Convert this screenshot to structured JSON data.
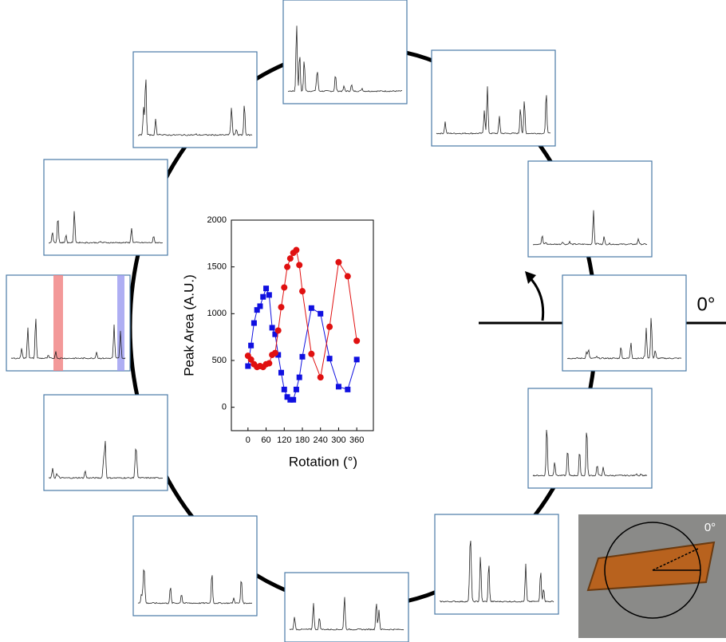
{
  "chart_data": {
    "type": "line",
    "xlabel": "Rotation (°)",
    "ylabel": "Peak Area (A.U.)",
    "annotations": [
      "0°",
      "0°"
    ],
    "x": [
      0,
      10,
      20,
      30,
      40,
      50,
      60,
      70,
      80,
      90,
      100,
      110,
      120,
      130,
      140,
      150,
      160,
      170,
      180,
      210,
      240,
      270,
      300,
      330,
      360
    ],
    "series": [
      {
        "name": "blue",
        "color": "#1010e0",
        "marker": "square",
        "values": [
          440,
          660,
          900,
          1040,
          1080,
          1180,
          1270,
          1200,
          850,
          780,
          560,
          370,
          190,
          110,
          80,
          80,
          190,
          320,
          540,
          1060,
          1000,
          520,
          220,
          190,
          510
        ]
      },
      {
        "name": "red",
        "color": "#e01010",
        "marker": "circle",
        "values": [
          550,
          510,
          460,
          430,
          440,
          430,
          460,
          470,
          560,
          580,
          820,
          1070,
          1280,
          1500,
          1590,
          1650,
          1680,
          1520,
          1240,
          570,
          320,
          860,
          1550,
          1400,
          710
        ]
      }
    ],
    "xlim": [
      -55,
      415
    ],
    "ylim": [
      -250,
      2000
    ],
    "xticks": [
      0,
      60,
      120,
      180,
      240,
      300,
      360
    ],
    "yticks": [
      0,
      500,
      1000,
      1500,
      2000
    ]
  }
}
